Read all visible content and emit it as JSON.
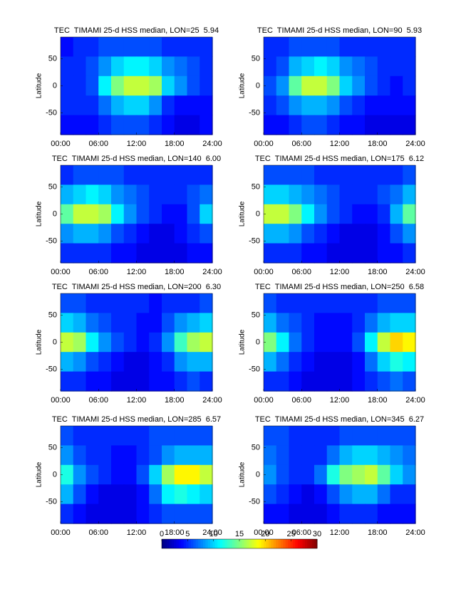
{
  "chart_data": [
    {
      "type": "heatmap",
      "title": "TEC  TIMAMI 25-d HSS median, LON=25  5.94",
      "ylabel": "Latitude",
      "x": [
        1,
        3,
        5,
        7,
        9,
        11,
        13,
        15,
        17,
        19,
        21,
        23
      ],
      "y": [
        72,
        36,
        0,
        -36,
        -72
      ],
      "z": [
        [
          4,
          5,
          5,
          6,
          6,
          6,
          6,
          6,
          5,
          5,
          5,
          5
        ],
        [
          5,
          5,
          6,
          8,
          10,
          11,
          11,
          10,
          8,
          7,
          6,
          5
        ],
        [
          5,
          5,
          6,
          11,
          15,
          17,
          17,
          16,
          10,
          8,
          6,
          5
        ],
        [
          5,
          5,
          5,
          7,
          9,
          10,
          10,
          8,
          5,
          4,
          4,
          4
        ],
        [
          4,
          4,
          4,
          5,
          6,
          6,
          6,
          5,
          4,
          3,
          3,
          4
        ]
      ],
      "xlim": [
        0,
        24
      ],
      "ylim": [
        -90,
        90
      ],
      "yticks": [
        -50,
        0,
        50
      ],
      "xticks": [
        {
          "value": 0,
          "label": "00:00"
        },
        {
          "value": 6,
          "label": "06:00"
        },
        {
          "value": 12,
          "label": "12:00"
        },
        {
          "value": 18,
          "label": "18:00"
        },
        {
          "value": 24,
          "label": "24:00"
        }
      ]
    },
    {
      "type": "heatmap",
      "title": "TEC  TIMAMI 25-d HSS median, LON=90  5.93",
      "ylabel": "Latitude",
      "x": [
        1,
        3,
        5,
        7,
        9,
        11,
        13,
        15,
        17,
        19,
        21,
        23
      ],
      "y": [
        72,
        36,
        0,
        -36,
        -72
      ],
      "z": [
        [
          5,
          5,
          6,
          6,
          6,
          6,
          5,
          5,
          5,
          5,
          5,
          5
        ],
        [
          5,
          6,
          9,
          10,
          11,
          10,
          8,
          7,
          6,
          5,
          5,
          5
        ],
        [
          6,
          8,
          14,
          17,
          17,
          15,
          10,
          8,
          6,
          5,
          4,
          5
        ],
        [
          5,
          6,
          8,
          9,
          9,
          8,
          6,
          5,
          4,
          4,
          4,
          4
        ],
        [
          4,
          4,
          5,
          6,
          6,
          5,
          4,
          4,
          3,
          3,
          3,
          3
        ]
      ],
      "xlim": [
        0,
        24
      ],
      "ylim": [
        -90,
        90
      ],
      "yticks": [
        -50,
        0,
        50
      ],
      "xticks": [
        {
          "value": 0,
          "label": "00:00"
        },
        {
          "value": 6,
          "label": "06:00"
        },
        {
          "value": 12,
          "label": "12:00"
        },
        {
          "value": 18,
          "label": "18:00"
        },
        {
          "value": 24,
          "label": "24:00"
        }
      ]
    },
    {
      "type": "heatmap",
      "title": "TEC  TIMAMI 25-d HSS median, LON=140  6.00",
      "ylabel": "Latitude",
      "x": [
        1,
        3,
        5,
        7,
        9,
        11,
        13,
        15,
        17,
        19,
        21,
        23
      ],
      "y": [
        72,
        36,
        0,
        -36,
        -72
      ],
      "z": [
        [
          5,
          6,
          6,
          6,
          6,
          5,
          5,
          5,
          5,
          5,
          5,
          5
        ],
        [
          9,
          10,
          11,
          10,
          8,
          7,
          6,
          5,
          5,
          5,
          6,
          7
        ],
        [
          14,
          17,
          17,
          16,
          11,
          8,
          6,
          5,
          4,
          4,
          6,
          10
        ],
        [
          8,
          9,
          9,
          8,
          6,
          5,
          4,
          3,
          3,
          4,
          5,
          6
        ],
        [
          5,
          5,
          5,
          5,
          4,
          4,
          3,
          3,
          3,
          3,
          4,
          4
        ]
      ],
      "xlim": [
        0,
        24
      ],
      "ylim": [
        -90,
        90
      ],
      "yticks": [
        -50,
        0,
        50
      ],
      "xticks": [
        {
          "value": 0,
          "label": "00:00"
        },
        {
          "value": 6,
          "label": "06:00"
        },
        {
          "value": 12,
          "label": "12:00"
        },
        {
          "value": 18,
          "label": "18:00"
        },
        {
          "value": 24,
          "label": "24:00"
        }
      ]
    },
    {
      "type": "heatmap",
      "title": "TEC  TIMAMI 25-d HSS median, LON=175  6.12",
      "ylabel": "Latitude",
      "x": [
        1,
        3,
        5,
        7,
        9,
        11,
        13,
        15,
        17,
        19,
        21,
        23
      ],
      "y": [
        72,
        36,
        0,
        -36,
        -72
      ],
      "z": [
        [
          6,
          6,
          6,
          6,
          5,
          5,
          5,
          5,
          5,
          5,
          5,
          6
        ],
        [
          10,
          10,
          9,
          8,
          7,
          6,
          5,
          5,
          5,
          6,
          7,
          9
        ],
        [
          17,
          17,
          15,
          11,
          8,
          6,
          5,
          4,
          4,
          5,
          9,
          14
        ],
        [
          9,
          9,
          8,
          6,
          5,
          4,
          3,
          3,
          3,
          4,
          6,
          8
        ],
        [
          5,
          5,
          5,
          4,
          4,
          3,
          3,
          3,
          3,
          4,
          4,
          5
        ]
      ],
      "xlim": [
        0,
        24
      ],
      "ylim": [
        -90,
        90
      ],
      "yticks": [
        -50,
        0,
        50
      ],
      "xticks": [
        {
          "value": 0,
          "label": "00:00"
        },
        {
          "value": 6,
          "label": "06:00"
        },
        {
          "value": 12,
          "label": "12:00"
        },
        {
          "value": 18,
          "label": "18:00"
        },
        {
          "value": 24,
          "label": "24:00"
        }
      ]
    },
    {
      "type": "heatmap",
      "title": "TEC  TIMAMI 25-d HSS median, LON=200  6.30",
      "ylabel": "Latitude",
      "x": [
        1,
        3,
        5,
        7,
        9,
        11,
        13,
        15,
        17,
        19,
        21,
        23
      ],
      "y": [
        72,
        36,
        0,
        -36,
        -72
      ],
      "z": [
        [
          6,
          6,
          5,
          5,
          5,
          5,
          5,
          4,
          5,
          5,
          5,
          6
        ],
        [
          10,
          9,
          7,
          6,
          5,
          5,
          4,
          4,
          6,
          8,
          9,
          10
        ],
        [
          17,
          16,
          11,
          8,
          6,
          5,
          4,
          5,
          8,
          13,
          16,
          17
        ],
        [
          9,
          8,
          6,
          5,
          4,
          3,
          3,
          4,
          5,
          8,
          9,
          9
        ],
        [
          5,
          5,
          4,
          4,
          3,
          3,
          3,
          4,
          4,
          5,
          6,
          5
        ]
      ],
      "xlim": [
        0,
        24
      ],
      "ylim": [
        -90,
        90
      ],
      "yticks": [
        -50,
        0,
        50
      ],
      "xticks": [
        {
          "value": 0,
          "label": "00:00"
        },
        {
          "value": 6,
          "label": "06:00"
        },
        {
          "value": 12,
          "label": "12:00"
        },
        {
          "value": 18,
          "label": "18:00"
        },
        {
          "value": 24,
          "label": "24:00"
        }
      ]
    },
    {
      "type": "heatmap",
      "title": "TEC  TIMAMI 25-d HSS median, LON=250  6.58",
      "ylabel": "Latitude",
      "x": [
        1,
        3,
        5,
        7,
        9,
        11,
        13,
        15,
        17,
        19,
        21,
        23
      ],
      "y": [
        72,
        36,
        0,
        -36,
        -72
      ],
      "z": [
        [
          6,
          5,
          5,
          5,
          5,
          5,
          5,
          5,
          5,
          6,
          6,
          6
        ],
        [
          9,
          7,
          6,
          5,
          4,
          4,
          4,
          5,
          7,
          9,
          10,
          10
        ],
        [
          15,
          11,
          7,
          5,
          4,
          4,
          4,
          6,
          11,
          17,
          20,
          19
        ],
        [
          9,
          7,
          5,
          4,
          3,
          3,
          3,
          4,
          7,
          10,
          12,
          11
        ],
        [
          5,
          5,
          4,
          3,
          3,
          3,
          3,
          4,
          5,
          6,
          7,
          6
        ]
      ],
      "xlim": [
        0,
        24
      ],
      "ylim": [
        -90,
        90
      ],
      "yticks": [
        -50,
        0,
        50
      ],
      "xticks": [
        {
          "value": 0,
          "label": "00:00"
        },
        {
          "value": 6,
          "label": "06:00"
        },
        {
          "value": 12,
          "label": "12:00"
        },
        {
          "value": 18,
          "label": "18:00"
        },
        {
          "value": 24,
          "label": "24:00"
        }
      ]
    },
    {
      "type": "heatmap",
      "title": "TEC  TIMAMI 25-d HSS median, LON=285  6.57",
      "ylabel": "Latitude",
      "x": [
        1,
        3,
        5,
        7,
        9,
        11,
        13,
        15,
        17,
        19,
        21,
        23
      ],
      "y": [
        72,
        36,
        0,
        -36,
        -72
      ],
      "z": [
        [
          6,
          5,
          5,
          5,
          5,
          5,
          5,
          6,
          6,
          6,
          6,
          6
        ],
        [
          8,
          6,
          5,
          5,
          4,
          4,
          5,
          6,
          8,
          9,
          9,
          9
        ],
        [
          12,
          8,
          6,
          5,
          4,
          4,
          6,
          10,
          16,
          19,
          19,
          17
        ],
        [
          9,
          6,
          4,
          3,
          3,
          3,
          4,
          7,
          11,
          12,
          11,
          10
        ],
        [
          5,
          4,
          3,
          3,
          3,
          3,
          4,
          5,
          6,
          6,
          6,
          6
        ]
      ],
      "xlim": [
        0,
        24
      ],
      "ylim": [
        -90,
        90
      ],
      "yticks": [
        -50,
        0,
        50
      ],
      "xticks": [
        {
          "value": 0,
          "label": "00:00"
        },
        {
          "value": 6,
          "label": "06:00"
        },
        {
          "value": 12,
          "label": "12:00"
        },
        {
          "value": 18,
          "label": "18:00"
        },
        {
          "value": 24,
          "label": "24:00"
        }
      ]
    },
    {
      "type": "heatmap",
      "title": "TEC  TIMAMI 25-d HSS median, LON=345  6.27",
      "ylabel": "Latitude",
      "x": [
        1,
        3,
        5,
        7,
        9,
        11,
        13,
        15,
        17,
        19,
        21,
        23
      ],
      "y": [
        72,
        36,
        0,
        -36,
        -72
      ],
      "z": [
        [
          6,
          6,
          5,
          5,
          5,
          5,
          6,
          6,
          6,
          6,
          6,
          6
        ],
        [
          7,
          6,
          5,
          5,
          5,
          7,
          9,
          10,
          10,
          9,
          8,
          7
        ],
        [
          8,
          6,
          5,
          5,
          7,
          12,
          15,
          16,
          17,
          14,
          10,
          8
        ],
        [
          6,
          5,
          4,
          3,
          4,
          6,
          8,
          9,
          9,
          7,
          5,
          5
        ],
        [
          4,
          4,
          3,
          3,
          3,
          4,
          5,
          5,
          5,
          4,
          4,
          4
        ]
      ],
      "xlim": [
        0,
        24
      ],
      "ylim": [
        -90,
        90
      ],
      "yticks": [
        -50,
        0,
        50
      ],
      "xticks": [
        {
          "value": 0,
          "label": "00:00"
        },
        {
          "value": 6,
          "label": "06:00"
        },
        {
          "value": 12,
          "label": "12:00"
        },
        {
          "value": 18,
          "label": "18:00"
        },
        {
          "value": 24,
          "label": "24:00"
        }
      ]
    }
  ],
  "colorbar": {
    "clim": [
      0,
      30
    ],
    "ticks": [
      0,
      5,
      10,
      15,
      20,
      25,
      30
    ]
  }
}
